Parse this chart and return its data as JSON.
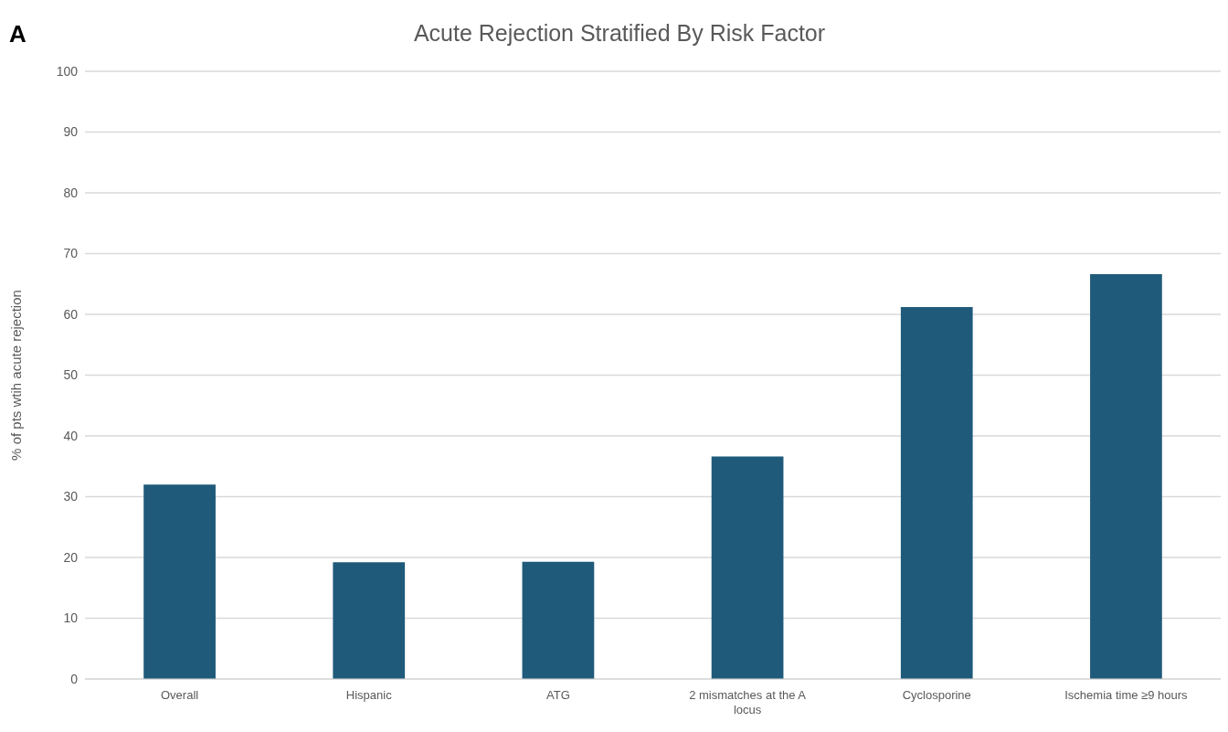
{
  "chart_data": {
    "type": "bar",
    "title": "Acute Rejection Stratified By Risk Factor",
    "ylabel": "% of pts wtih acute rejection",
    "annotations": [
      "A"
    ],
    "categories": [
      "Overall",
      "Hispanic",
      "ATG",
      "2 mismatches at the A locus",
      "Cyclosporine",
      "Ischemia time ≥9 hours"
    ],
    "values": [
      32.0,
      19.2,
      19.3,
      36.6,
      61.2,
      66.6
    ],
    "color": "#1f5a7a",
    "ylim": [
      0,
      100
    ],
    "yticks": [
      0,
      10,
      20,
      30,
      40,
      50,
      60,
      70,
      80,
      90,
      100
    ],
    "grid": "y"
  }
}
